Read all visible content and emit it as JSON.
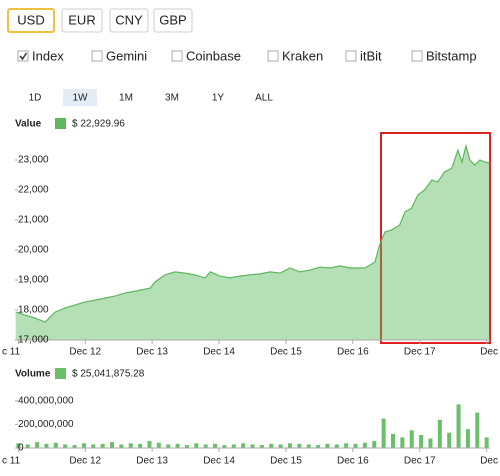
{
  "currencies": [
    "USD",
    "EUR",
    "CNY",
    "GBP"
  ],
  "selected_currency": "USD",
  "sources": [
    {
      "name": "Index",
      "color": "#3a9a3a",
      "checked": true
    },
    {
      "name": "Gemini",
      "color": "#7a4a32",
      "checked": false
    },
    {
      "name": "Coinbase",
      "color": "#2a7a7a",
      "checked": false
    },
    {
      "name": "Kraken",
      "color": "#d08a2a",
      "checked": false
    },
    {
      "name": "itBit",
      "color": "#222222",
      "checked": false
    },
    {
      "name": "Bitstamp",
      "color": "#2f6e3a",
      "checked": false
    }
  ],
  "ranges": [
    "1D",
    "1W",
    "1M",
    "3M",
    "1Y",
    "ALL"
  ],
  "selected_range": "1W",
  "chart_data": [
    {
      "type": "area",
      "legend_label": "Value",
      "legend_value": "$ 22,929.96",
      "color": "#5cb85c",
      "x": [
        10.96,
        11.1,
        11.25,
        11.4,
        11.55,
        11.7,
        11.85,
        12.0,
        12.15,
        12.3,
        12.45,
        12.6,
        12.75,
        12.97,
        13.04,
        13.19,
        13.34,
        13.49,
        13.64,
        13.79,
        13.87,
        14.01,
        14.16,
        14.31,
        14.46,
        14.61,
        14.76,
        14.91,
        15.06,
        15.21,
        15.36,
        15.51,
        15.66,
        15.81,
        15.96,
        16.18,
        16.33,
        16.4,
        16.48,
        16.58,
        16.7,
        16.78,
        16.88,
        16.97,
        17.07,
        17.18,
        17.27,
        17.37,
        17.48,
        17.57,
        17.63,
        17.69,
        17.75,
        17.82,
        17.9,
        17.97,
        18.04
      ],
      "values": [
        17930,
        17830,
        17730,
        17600,
        17930,
        18070,
        18170,
        18270,
        18330,
        18400,
        18470,
        18570,
        18630,
        18730,
        18930,
        19170,
        19270,
        19230,
        19170,
        19070,
        19270,
        19130,
        19070,
        19130,
        19170,
        19200,
        19270,
        19230,
        19400,
        19270,
        19330,
        19430,
        19400,
        19470,
        19400,
        19400,
        19600,
        20170,
        20600,
        20670,
        20830,
        21270,
        21400,
        21830,
        22000,
        22330,
        22270,
        22600,
        22730,
        23330,
        22930,
        23470,
        23000,
        22830,
        23000,
        22930,
        22900
      ],
      "xlim": [
        10.95,
        18.05
      ],
      "xticks": [
        {
          "value": 11,
          "label": "c 11"
        },
        {
          "value": 12,
          "label": "Dec 12"
        },
        {
          "value": 13,
          "label": "Dec 13"
        },
        {
          "value": 14,
          "label": "Dec 14"
        },
        {
          "value": 15,
          "label": "Dec 15"
        },
        {
          "value": 16,
          "label": "Dec 16"
        },
        {
          "value": 17,
          "label": "Dec 17"
        },
        {
          "value": 18,
          "label": "Dec"
        }
      ],
      "ylim": [
        17000,
        24000
      ],
      "yticks": [
        {
          "value": 17000,
          "label": "17,000"
        },
        {
          "value": 18000,
          "label": "18,000"
        },
        {
          "value": 19000,
          "label": "19,000"
        },
        {
          "value": 20000,
          "label": "20,000"
        },
        {
          "value": 21000,
          "label": "21,000"
        },
        {
          "value": 22000,
          "label": "22,000"
        },
        {
          "value": 23000,
          "label": "23,000"
        }
      ],
      "grid": false
    },
    {
      "type": "bar",
      "legend_label": "Volume",
      "legend_value": "$ 25,041,875.28",
      "color": "#6abf69",
      "x": [
        11.0,
        11.14,
        11.28,
        11.42,
        11.56,
        11.7,
        11.84,
        11.98,
        12.12,
        12.26,
        12.4,
        12.54,
        12.68,
        12.82,
        12.96,
        13.1,
        13.24,
        13.38,
        13.52,
        13.66,
        13.8,
        13.94,
        14.08,
        14.22,
        14.36,
        14.5,
        14.64,
        14.78,
        14.92,
        15.06,
        15.2,
        15.34,
        15.48,
        15.62,
        15.76,
        15.9,
        16.04,
        16.18,
        16.32,
        16.46,
        16.6,
        16.74,
        16.88,
        17.02,
        17.16,
        17.3,
        17.44,
        17.58,
        17.72,
        17.86,
        18.0
      ],
      "values": [
        40000000,
        30000000,
        50000000,
        35000000,
        45000000,
        30000000,
        25000000,
        40000000,
        30000000,
        35000000,
        50000000,
        30000000,
        40000000,
        35000000,
        60000000,
        45000000,
        30000000,
        35000000,
        25000000,
        40000000,
        30000000,
        35000000,
        25000000,
        30000000,
        40000000,
        30000000,
        25000000,
        35000000,
        30000000,
        40000000,
        35000000,
        30000000,
        25000000,
        35000000,
        30000000,
        40000000,
        35000000,
        45000000,
        60000000,
        250000000,
        120000000,
        90000000,
        150000000,
        110000000,
        80000000,
        240000000,
        130000000,
        370000000,
        160000000,
        300000000,
        90000000
      ],
      "xlim": [
        10.95,
        18.05
      ],
      "xticks": [
        {
          "value": 11,
          "label": "c 11"
        },
        {
          "value": 12,
          "label": "Dec 12"
        },
        {
          "value": 13,
          "label": "Dec 13"
        },
        {
          "value": 14,
          "label": "Dec 14"
        },
        {
          "value": 15,
          "label": "Dec 15"
        },
        {
          "value": 16,
          "label": "Dec 16"
        },
        {
          "value": 17,
          "label": "Dec 17"
        },
        {
          "value": 18,
          "label": "Dec"
        }
      ],
      "ylim": [
        0,
        560000000
      ],
      "yticks": [
        0,
        {
          "value": 200000000,
          "label": "200,000,000"
        },
        {
          "value": 400000000,
          "label": "400,000,000"
        }
      ],
      "grid": false
    }
  ]
}
